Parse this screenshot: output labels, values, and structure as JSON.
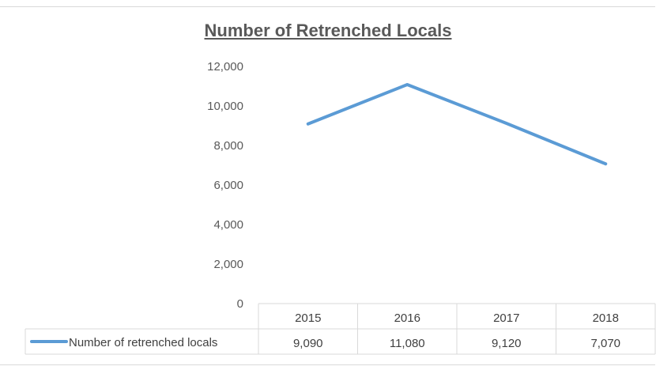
{
  "chart_data": {
    "type": "line",
    "title": "Number of Retrenched Locals",
    "categories": [
      "2015",
      "2016",
      "2017",
      "2018"
    ],
    "series": [
      {
        "name": "Number of retrenched locals",
        "values": [
          9090,
          11080,
          9120,
          7070
        ]
      }
    ],
    "ylim": [
      0,
      12000
    ],
    "yticks": [
      0,
      2000,
      4000,
      6000,
      8000,
      10000,
      12000
    ],
    "ytick_labels": [
      "0",
      "2,000",
      "4,000",
      "6,000",
      "8,000",
      "10,000",
      "12,000"
    ],
    "value_labels": [
      "9,090",
      "11,080",
      "9,120",
      "7,070"
    ],
    "grid": false,
    "legend": "data-table",
    "colors": {
      "line": "#5b9bd5",
      "text": "#595959",
      "border": "#d9d9d9"
    }
  }
}
